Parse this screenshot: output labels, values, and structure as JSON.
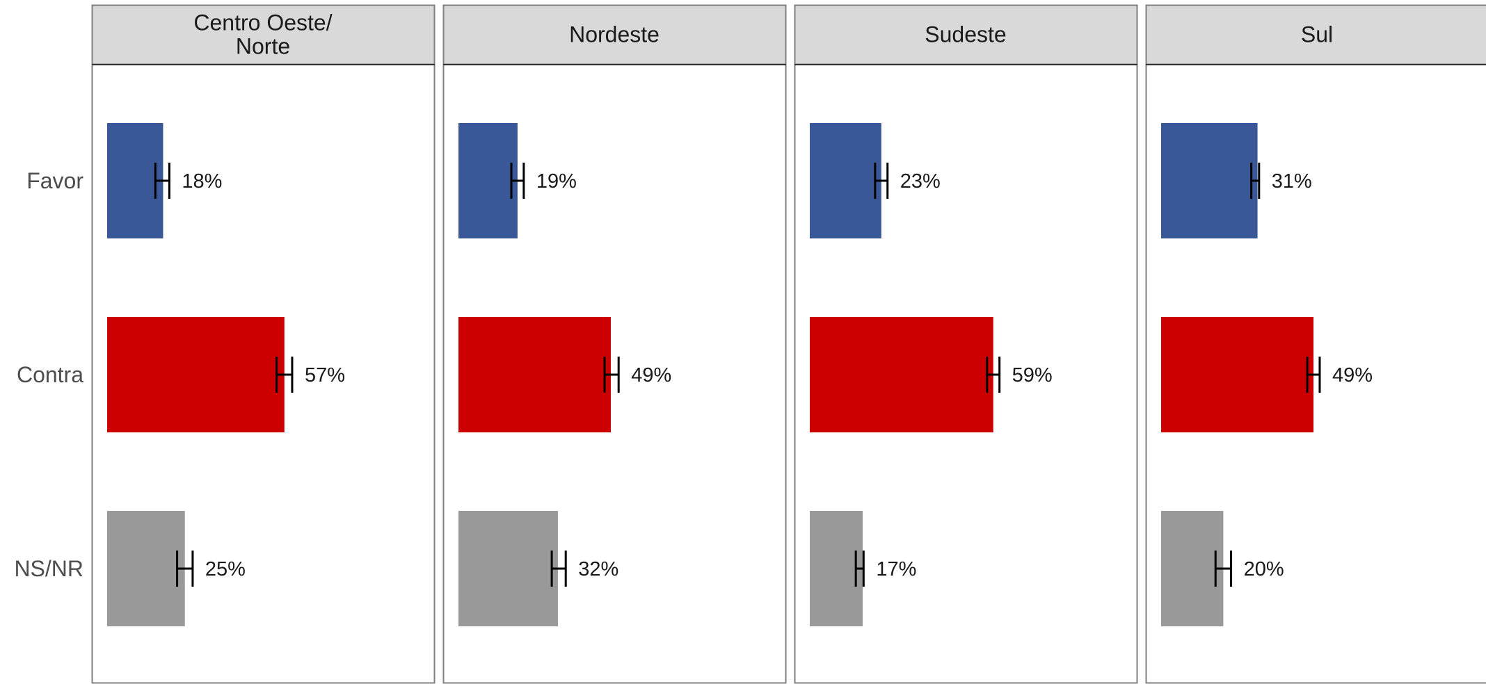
{
  "chart_data": {
    "type": "bar",
    "orientation": "horizontal",
    "facet_by": "region",
    "categories": [
      "Favor",
      "Contra",
      "NS/NR"
    ],
    "colors": {
      "Favor": "#3a5897",
      "Contra": "#cc0000",
      "NS/NR": "#999999"
    },
    "error_bar_color": "#000000",
    "facet_strip_color": "#d9d9d9",
    "xlim": [
      0,
      100
    ],
    "grid": false,
    "legend": "none",
    "panels": [
      {
        "title": [
          "Centro Oeste/",
          "Norte"
        ],
        "values": [
          18,
          57,
          25
        ],
        "labels": [
          "18%",
          "57%",
          "25%"
        ],
        "error_low": [
          15.5,
          54.5,
          22.5
        ],
        "error_high": [
          20.0,
          59.5,
          27.5
        ]
      },
      {
        "title": [
          "Nordeste"
        ],
        "values": [
          19,
          49,
          32
        ],
        "labels": [
          "19%",
          "49%",
          "32%"
        ],
        "error_low": [
          17.0,
          47.0,
          30.0
        ],
        "error_high": [
          21.0,
          51.5,
          34.5
        ]
      },
      {
        "title": [
          "Sudeste"
        ],
        "values": [
          23,
          59,
          17
        ],
        "labels": [
          "23%",
          "59%",
          "17%"
        ],
        "error_low": [
          21.0,
          57.0,
          14.8
        ],
        "error_high": [
          25.0,
          61.0,
          17.3
        ]
      },
      {
        "title": [
          "Sul"
        ],
        "values": [
          31,
          49,
          20
        ],
        "labels": [
          "31%",
          "49%",
          "20%"
        ],
        "error_low": [
          29.0,
          47.0,
          17.5
        ],
        "error_high": [
          31.5,
          51.0,
          22.5
        ]
      }
    ]
  }
}
